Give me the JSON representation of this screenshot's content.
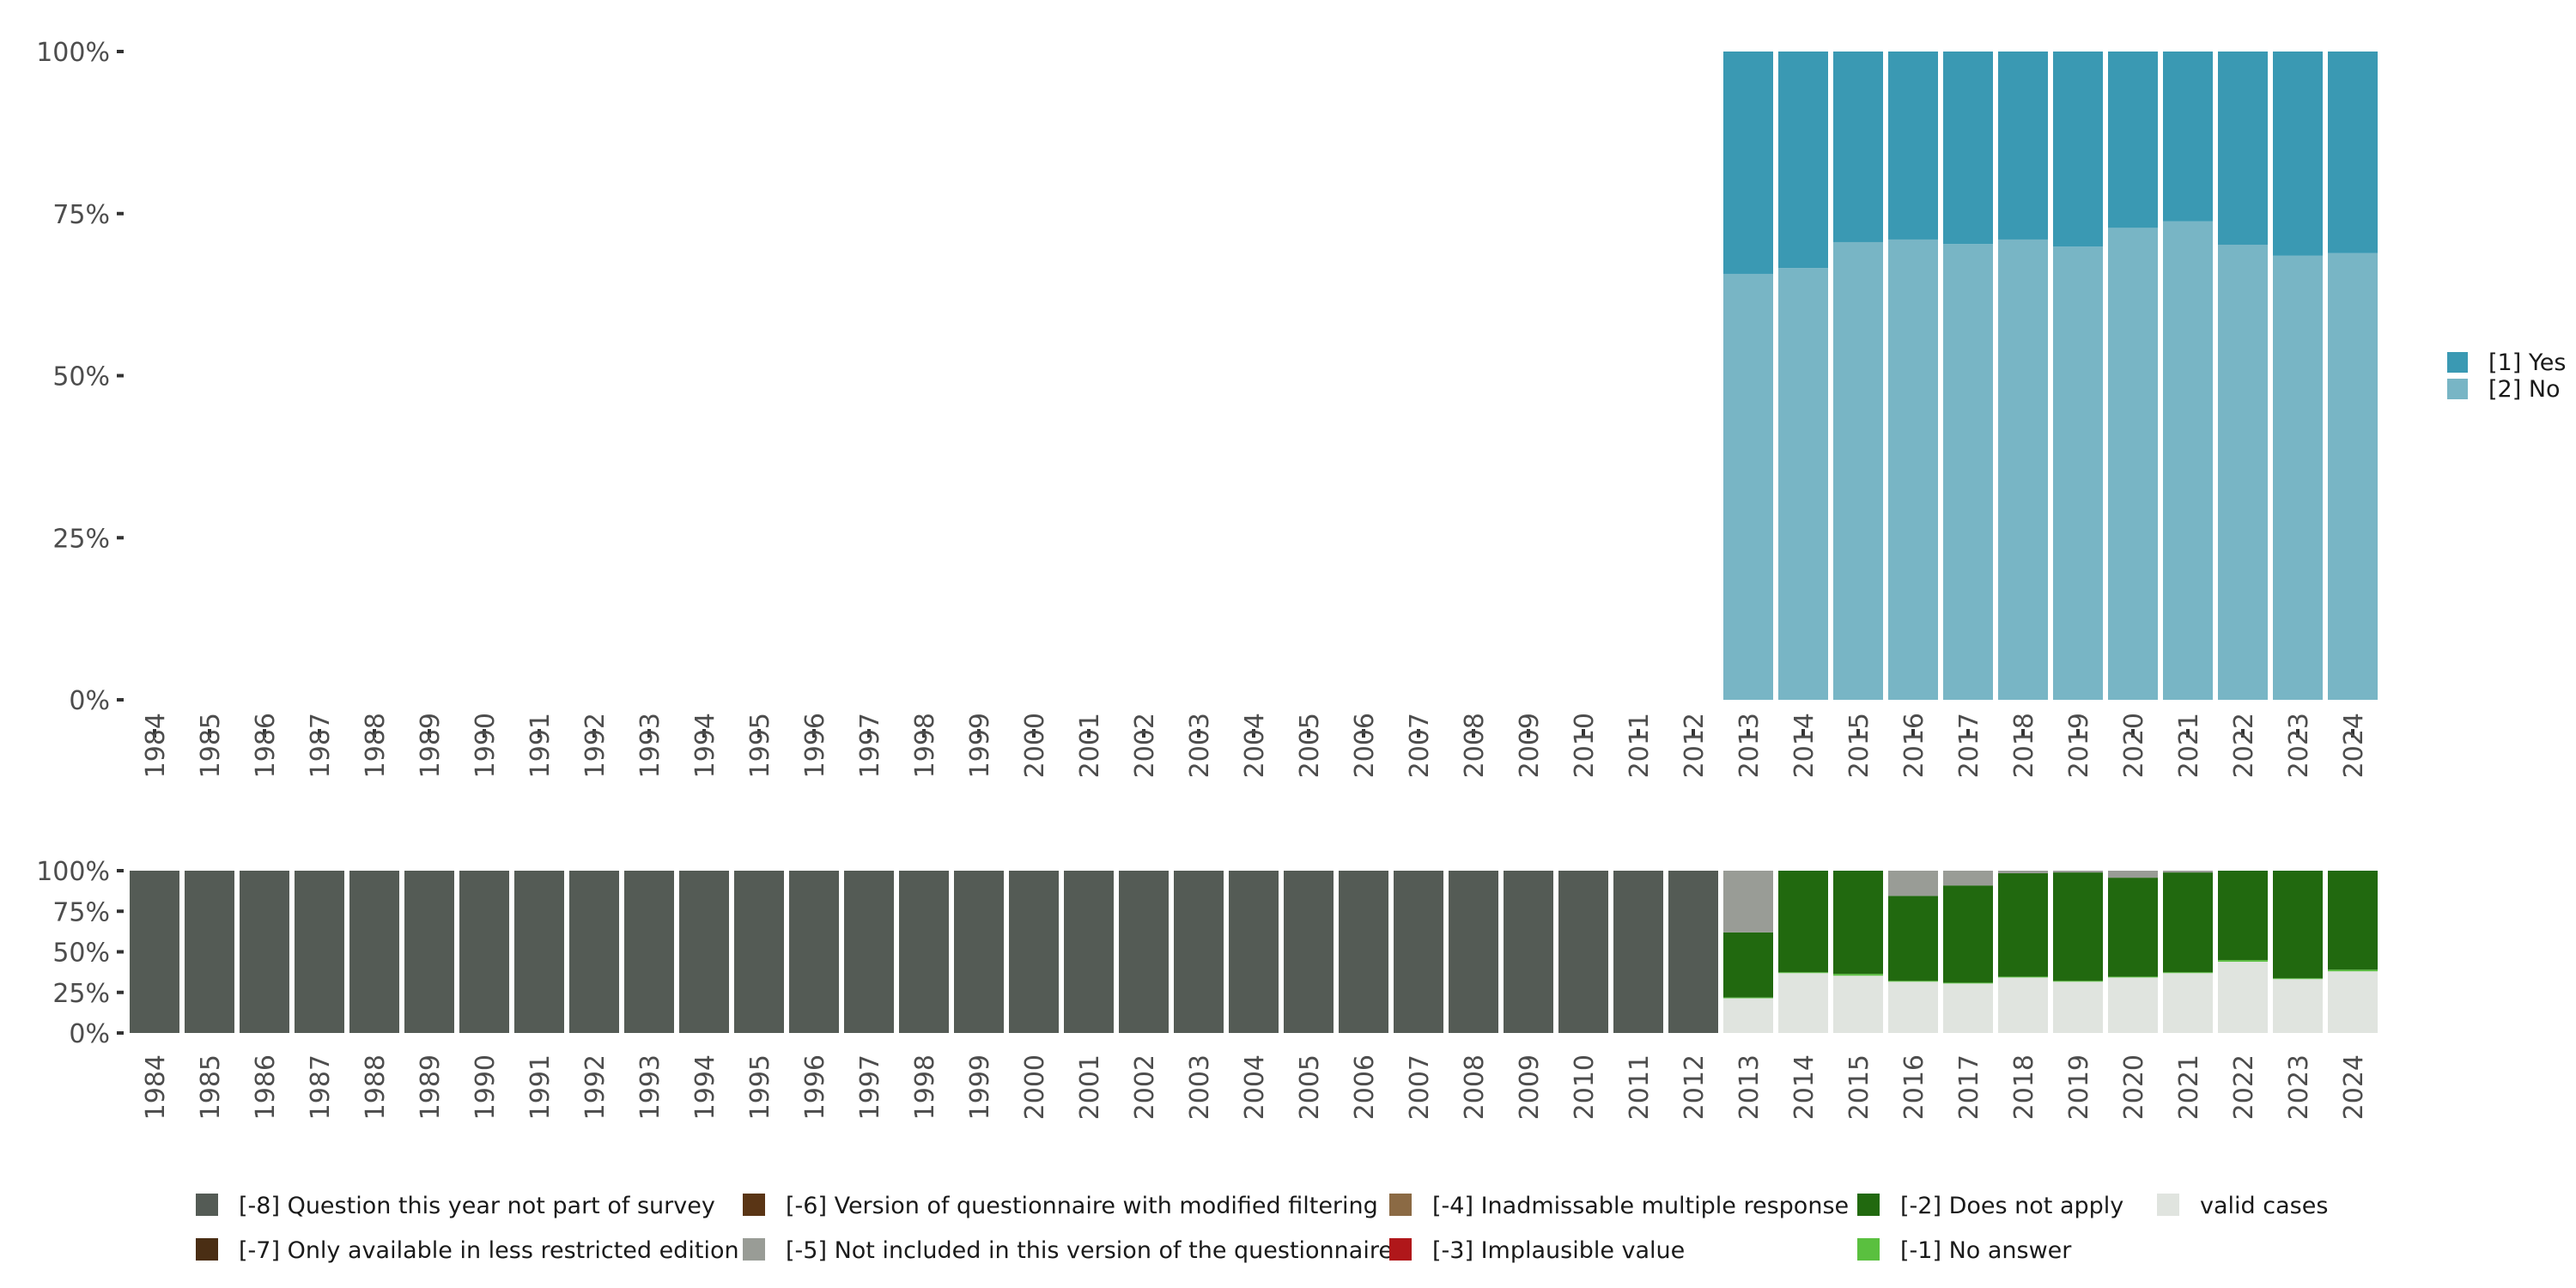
{
  "chart_data": [
    {
      "type": "bar",
      "stacked": true,
      "title": "",
      "xlabel": "",
      "ylabel": "",
      "ylim": [
        0,
        100
      ],
      "y_ticks": [
        "0%",
        "25%",
        "50%",
        "75%",
        "100%"
      ],
      "categories": [
        "1984",
        "1985",
        "1986",
        "1987",
        "1988",
        "1989",
        "1990",
        "1991",
        "1992",
        "1993",
        "1994",
        "1995",
        "1996",
        "1997",
        "1998",
        "1999",
        "2000",
        "2001",
        "2002",
        "2003",
        "2004",
        "2005",
        "2006",
        "2007",
        "2008",
        "2009",
        "2010",
        "2011",
        "2012",
        "2013",
        "2014",
        "2015",
        "2016",
        "2017",
        "2018",
        "2019",
        "2020",
        "2021",
        "2022",
        "2023",
        "2024"
      ],
      "legend_position": "right",
      "series": [
        {
          "name": "[2] No",
          "color": "#78b5c5",
          "values": [
            null,
            null,
            null,
            null,
            null,
            null,
            null,
            null,
            null,
            null,
            null,
            null,
            null,
            null,
            null,
            null,
            null,
            null,
            null,
            null,
            null,
            null,
            null,
            null,
            null,
            null,
            null,
            null,
            null,
            65.7,
            66.6,
            70.6,
            71.0,
            70.3,
            71.0,
            69.9,
            72.8,
            73.8,
            70.2,
            68.5,
            68.9
          ]
        },
        {
          "name": "[1] Yes",
          "color": "#3a99b3",
          "values": [
            null,
            null,
            null,
            null,
            null,
            null,
            null,
            null,
            null,
            null,
            null,
            null,
            null,
            null,
            null,
            null,
            null,
            null,
            null,
            null,
            null,
            null,
            null,
            null,
            null,
            null,
            null,
            null,
            null,
            34.3,
            33.4,
            29.4,
            29.0,
            29.7,
            29.0,
            30.1,
            27.2,
            26.2,
            29.8,
            31.5,
            31.1
          ]
        }
      ],
      "legend_order": [
        "[1] Yes",
        "[2] No"
      ]
    },
    {
      "type": "bar",
      "stacked": true,
      "ylim": [
        0,
        100
      ],
      "y_ticks": [
        "0%",
        "25%",
        "50%",
        "75%",
        "100%"
      ],
      "categories": [
        "1984",
        "1985",
        "1986",
        "1987",
        "1988",
        "1989",
        "1990",
        "1991",
        "1992",
        "1993",
        "1994",
        "1995",
        "1996",
        "1997",
        "1998",
        "1999",
        "2000",
        "2001",
        "2002",
        "2003",
        "2004",
        "2005",
        "2006",
        "2007",
        "2008",
        "2009",
        "2010",
        "2011",
        "2012",
        "2013",
        "2014",
        "2015",
        "2016",
        "2017",
        "2018",
        "2019",
        "2020",
        "2021",
        "2022",
        "2023",
        "2024"
      ],
      "legend_position": "bottom",
      "series": [
        {
          "name": "valid cases",
          "color": "#e0e4df",
          "values": [
            0,
            0,
            0,
            0,
            0,
            0,
            0,
            0,
            0,
            0,
            0,
            0,
            0,
            0,
            0,
            0,
            0,
            0,
            0,
            0,
            0,
            0,
            0,
            0,
            0,
            0,
            0,
            0,
            0,
            21.4,
            36.9,
            35.3,
            31.6,
            30.5,
            34.2,
            31.6,
            34.2,
            36.9,
            43.9,
            33.2,
            38.0
          ]
        },
        {
          "name": "[-1] No answer",
          "color": "#5ac03f",
          "values": [
            0,
            0,
            0,
            0,
            0,
            0,
            0,
            0,
            0,
            0,
            0,
            0,
            0,
            0,
            0,
            0,
            0,
            0,
            0,
            0,
            0,
            0,
            0,
            0,
            0,
            0,
            0,
            0,
            0,
            0.5,
            0.5,
            1.1,
            0.5,
            0.5,
            0.5,
            0.5,
            0.5,
            0.5,
            1.0,
            0.5,
            1.0
          ]
        },
        {
          "name": "[-2] Does not apply",
          "color": "#21690f",
          "values": [
            0,
            0,
            0,
            0,
            0,
            0,
            0,
            0,
            0,
            0,
            0,
            0,
            0,
            0,
            0,
            0,
            0,
            0,
            0,
            0,
            0,
            0,
            0,
            0,
            0,
            0,
            0,
            0,
            0,
            40.1,
            62.6,
            63.6,
            52.4,
            59.9,
            63.7,
            66.8,
            61.0,
            61.5,
            55.1,
            66.3,
            61.0
          ]
        },
        {
          "name": "[-3] Implausible value",
          "color": "#b0171a",
          "values": [
            0,
            0,
            0,
            0,
            0,
            0,
            0,
            0,
            0,
            0,
            0,
            0,
            0,
            0,
            0,
            0,
            0,
            0,
            0,
            0,
            0,
            0,
            0,
            0,
            0,
            0,
            0,
            0,
            0,
            0,
            0,
            0,
            0,
            0,
            0,
            0,
            0,
            0,
            0,
            0,
            0
          ]
        },
        {
          "name": "[-4] Inadmissable multiple response",
          "color": "#8b6a44",
          "values": [
            0,
            0,
            0,
            0,
            0,
            0,
            0,
            0,
            0,
            0,
            0,
            0,
            0,
            0,
            0,
            0,
            0,
            0,
            0,
            0,
            0,
            0,
            0,
            0,
            0,
            0,
            0,
            0,
            0,
            0,
            0,
            0,
            0,
            0,
            0,
            0,
            0,
            0,
            0,
            0,
            0
          ]
        },
        {
          "name": "[-5] Not included in this version of the questionnaire",
          "color": "#999c96",
          "values": [
            0,
            0,
            0,
            0,
            0,
            0,
            0,
            0,
            0,
            0,
            0,
            0,
            0,
            0,
            0,
            0,
            0,
            0,
            0,
            0,
            0,
            0,
            0,
            0,
            0,
            0,
            0,
            0,
            0,
            38.0,
            0,
            0,
            15.5,
            9.1,
            1.6,
            1.1,
            4.3,
            1.1,
            0,
            0,
            0
          ]
        },
        {
          "name": "[-6] Version of questionnaire with modified filtering",
          "color": "#5a3515",
          "values": [
            0,
            0,
            0,
            0,
            0,
            0,
            0,
            0,
            0,
            0,
            0,
            0,
            0,
            0,
            0,
            0,
            0,
            0,
            0,
            0,
            0,
            0,
            0,
            0,
            0,
            0,
            0,
            0,
            0,
            0,
            0,
            0,
            0,
            0,
            0,
            0,
            0,
            0,
            0,
            0,
            0
          ]
        },
        {
          "name": "[-7] Only available in less restricted edition",
          "color": "#4a2e14",
          "values": [
            0,
            0,
            0,
            0,
            0,
            0,
            0,
            0,
            0,
            0,
            0,
            0,
            0,
            0,
            0,
            0,
            0,
            0,
            0,
            0,
            0,
            0,
            0,
            0,
            0,
            0,
            0,
            0,
            0,
            0,
            0,
            0,
            0,
            0,
            0,
            0,
            0,
            0,
            0,
            0,
            0
          ]
        },
        {
          "name": "[-8] Question this year not part of survey",
          "color": "#545b55",
          "values": [
            100,
            100,
            100,
            100,
            100,
            100,
            100,
            100,
            100,
            100,
            100,
            100,
            100,
            100,
            100,
            100,
            100,
            100,
            100,
            100,
            100,
            100,
            100,
            100,
            100,
            100,
            100,
            100,
            100,
            0,
            0,
            0,
            0,
            0,
            0,
            0,
            0,
            0,
            0,
            0,
            0
          ]
        }
      ],
      "legend_order": [
        "[-8] Question this year not part of survey",
        "[-6] Version of questionnaire with modified filtering",
        "[-4] Inadmissable multiple response",
        "[-2] Does not apply",
        "valid cases",
        "[-7] Only available in less restricted edition",
        "[-5] Not included in this version of the questionnaire",
        "[-3] Implausible value",
        "[-1] No answer"
      ]
    }
  ]
}
